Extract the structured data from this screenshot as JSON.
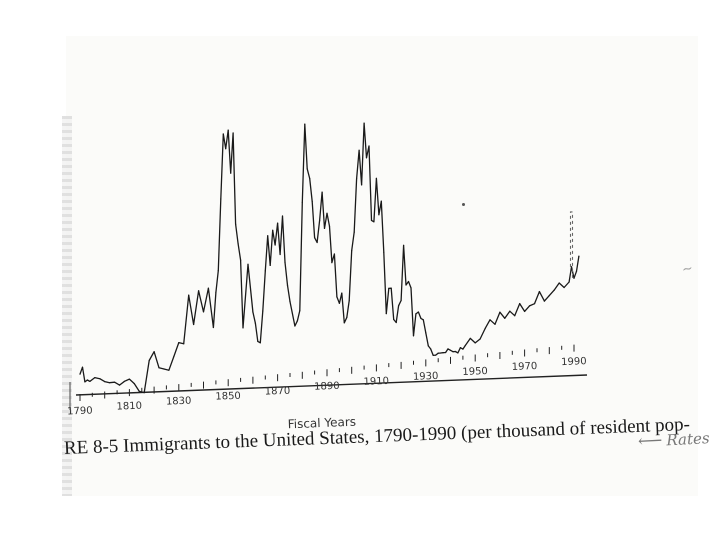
{
  "chart_data": {
    "type": "line",
    "title": "",
    "xlabel": "Fiscal Years",
    "ylabel": "",
    "xlim": [
      1790,
      1993
    ],
    "ylim": [
      0,
      16.2
    ],
    "grid": false,
    "x_ticks": [
      "1790",
      "1810",
      "1830",
      "1850",
      "1870",
      "1890",
      "1910",
      "1930",
      "1950",
      "1970",
      "1990"
    ],
    "series": [
      {
        "x": [
          1790,
          1791,
          1792,
          1793,
          1794,
          1796,
          1798,
          1800,
          1802,
          1804,
          1806,
          1808,
          1810,
          1812,
          1814,
          1816,
          1818,
          1820,
          1822,
          1824,
          1826,
          1828,
          1830,
          1832,
          1834,
          1836,
          1838,
          1840,
          1842,
          1844,
          1845,
          1846,
          1847,
          1848,
          1849,
          1850,
          1851,
          1852,
          1853,
          1854,
          1855,
          1856,
          1858,
          1860,
          1861,
          1862,
          1863,
          1864,
          1865,
          1866,
          1867,
          1868,
          1869,
          1870,
          1871,
          1872,
          1873,
          1874,
          1875,
          1877,
          1878,
          1879,
          1880,
          1881,
          1882,
          1883,
          1884,
          1885,
          1886,
          1887,
          1888,
          1889,
          1890,
          1891,
          1892,
          1893,
          1894,
          1895,
          1896,
          1897,
          1898,
          1899,
          1900,
          1901,
          1902,
          1903,
          1904,
          1905,
          1906,
          1907,
          1908,
          1909,
          1910,
          1911,
          1912,
          1913,
          1914,
          1915,
          1916,
          1917,
          1918,
          1919,
          1920,
          1921,
          1922,
          1923,
          1924,
          1925,
          1926,
          1927,
          1928,
          1929,
          1930,
          1931,
          1932,
          1933,
          1934,
          1935,
          1936,
          1937,
          1938,
          1939,
          1940,
          1941,
          1942,
          1943,
          1944,
          1945,
          1946,
          1948,
          1950,
          1952,
          1954,
          1956,
          1958,
          1960,
          1962,
          1964,
          1966,
          1968,
          1970,
          1972,
          1974,
          1976,
          1978,
          1980,
          1982,
          1984,
          1986,
          1988,
          1989,
          1990,
          1991,
          1992
        ],
        "values": [
          1.2,
          1.6,
          0.7,
          0.8,
          0.7,
          0.9,
          0.8,
          0.6,
          0.5,
          0.5,
          0.3,
          0.5,
          0.6,
          0.3,
          -0.2,
          -0.3,
          1.6,
          2.1,
          1.1,
          1.0,
          0.9,
          1.7,
          2.5,
          2.4,
          5.3,
          3.5,
          5.5,
          4.2,
          5.6,
          3.2,
          5.3,
          6.6,
          10.9,
          14.8,
          13.9,
          15.0,
          12.4,
          14.8,
          9.3,
          8.1,
          7.1,
          3.0,
          6.8,
          3.9,
          3.2,
          2.1,
          2.0,
          3.9,
          6.3,
          8.4,
          6.6,
          8.7,
          7.8,
          9.1,
          7.2,
          9.5,
          6.7,
          5.3,
          4.3,
          2.8,
          3.1,
          3.7,
          10.2,
          14.9,
          12.2,
          11.6,
          10.2,
          8.0,
          7.7,
          9.0,
          10.7,
          8.5,
          9.4,
          8.6,
          6.4,
          6.9,
          4.3,
          3.9,
          4.5,
          2.7,
          3.0,
          4.0,
          7.0,
          8.1,
          11.3,
          13.0,
          10.9,
          14.6,
          12.5,
          13.2,
          8.7,
          8.6,
          11.2,
          9.0,
          9.8,
          6.7,
          3.0,
          4.5,
          4.5,
          2.6,
          2.4,
          3.4,
          3.7,
          7.0,
          4.6,
          4.8,
          4.4,
          1.5,
          2.8,
          2.9,
          2.5,
          2.4,
          1.6,
          0.8,
          0.6,
          0.2,
          0.2,
          0.3,
          0.3,
          0.3,
          0.3,
          0.5,
          0.4,
          0.3,
          0.3,
          0.2,
          0.5,
          0.4,
          0.6,
          1.0,
          0.7,
          0.9,
          1.5,
          2.0,
          1.7,
          2.4,
          2.0,
          2.4,
          2.1,
          2.8,
          2.3,
          2.6,
          2.7,
          3.4,
          2.8,
          3.1,
          3.4,
          3.8,
          3.5,
          3.8,
          4.7,
          4.0,
          4.4,
          5.3
        ]
      }
    ]
  },
  "annotations": {
    "caption": "RE 8-5  Immigrants to the United States, 1790-1990 (per thousand of resident pop-",
    "handwritten_note": "Rates"
  }
}
